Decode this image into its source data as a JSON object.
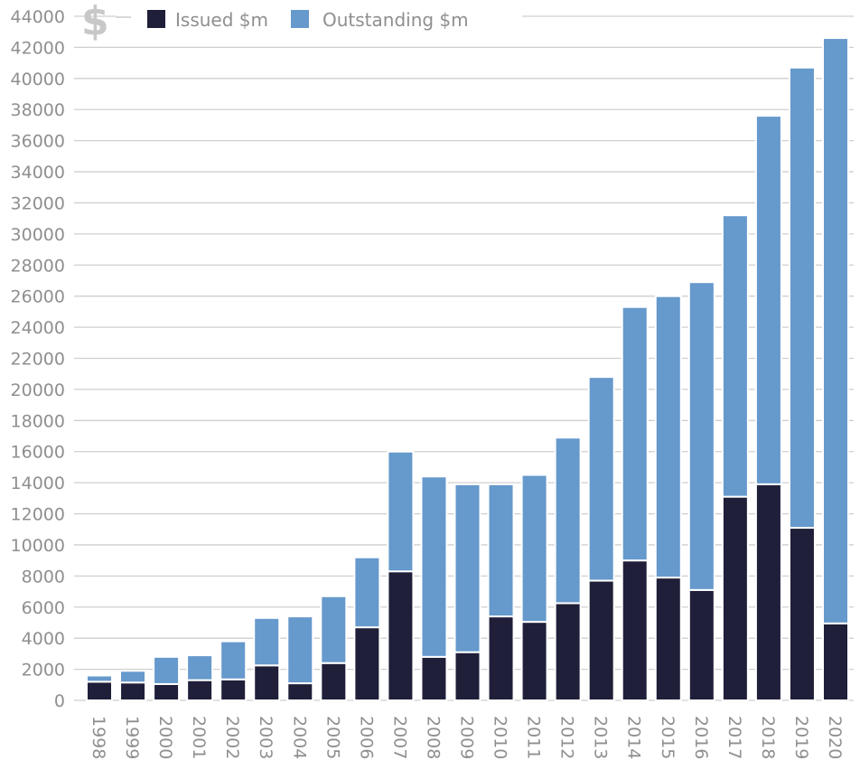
{
  "chart_data": {
    "type": "bar",
    "stacked": true,
    "title": "",
    "xlabel": "",
    "ylabel": "",
    "currency_symbol": "$",
    "ylim": [
      0,
      44000
    ],
    "yticks": [
      0,
      2000,
      4000,
      6000,
      8000,
      10000,
      12000,
      14000,
      16000,
      18000,
      20000,
      22000,
      24000,
      26000,
      28000,
      30000,
      32000,
      34000,
      36000,
      38000,
      40000,
      42000,
      44000
    ],
    "grid": true,
    "legend_position": "top",
    "categories": [
      "1998",
      "1999",
      "2000",
      "2001",
      "2002",
      "2003",
      "2004",
      "2005",
      "2006",
      "2007",
      "2008",
      "2009",
      "2010",
      "2011",
      "2012",
      "2013",
      "2014",
      "2015",
      "2016",
      "2017",
      "2018",
      "2019",
      "2020"
    ],
    "series": [
      {
        "name": "Issued $m",
        "color": "#1f1f3a",
        "values": [
          1200,
          1150,
          1050,
          1300,
          1350,
          2250,
          1100,
          2400,
          4700,
          8300,
          2800,
          3100,
          5400,
          5050,
          6250,
          7700,
          9000,
          7900,
          7100,
          13100,
          13900,
          11100,
          4950
        ]
      },
      {
        "name": "Outstanding $m",
        "color": "#6699cc",
        "values": [
          400,
          750,
          1750,
          1600,
          2450,
          3050,
          4300,
          4300,
          4500,
          7700,
          11600,
          10800,
          8500,
          9450,
          10650,
          13100,
          16300,
          18100,
          19800,
          18100,
          23700,
          29600,
          37650
        ]
      }
    ]
  }
}
